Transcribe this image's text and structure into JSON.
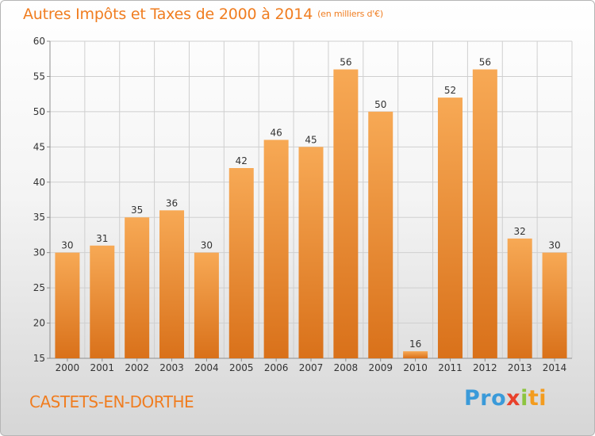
{
  "page": {
    "title": "Autres Impôts et Taxes de 2000 à 2014",
    "unit": "(en milliers d'€)",
    "town": "CASTETS-EN-DORTHE",
    "logo": {
      "parts": [
        "Pro",
        "x",
        "i",
        "ti"
      ]
    }
  },
  "colors": {
    "bar_light": "#f7a955",
    "bar_dark": "#d9711a",
    "title": "#f07d20",
    "grid": "#cfcfcf",
    "axis": "#8f8f8f"
  },
  "chart_data": {
    "type": "bar",
    "title": "Autres Impôts et Taxes de 2000 à 2014",
    "subtitle": "(en milliers d'€)",
    "xlabel": "",
    "ylabel": "",
    "categories": [
      "2000",
      "2001",
      "2002",
      "2003",
      "2004",
      "2005",
      "2006",
      "2007",
      "2008",
      "2009",
      "2010",
      "2011",
      "2012",
      "2013",
      "2014"
    ],
    "values": [
      30,
      31,
      35,
      36,
      30,
      42,
      46,
      45,
      56,
      50,
      16,
      52,
      56,
      32,
      30
    ],
    "ylim": [
      15,
      60
    ],
    "yticks": [
      15,
      20,
      25,
      30,
      35,
      40,
      45,
      50,
      55,
      60
    ],
    "grid": true,
    "data_labels": true
  }
}
